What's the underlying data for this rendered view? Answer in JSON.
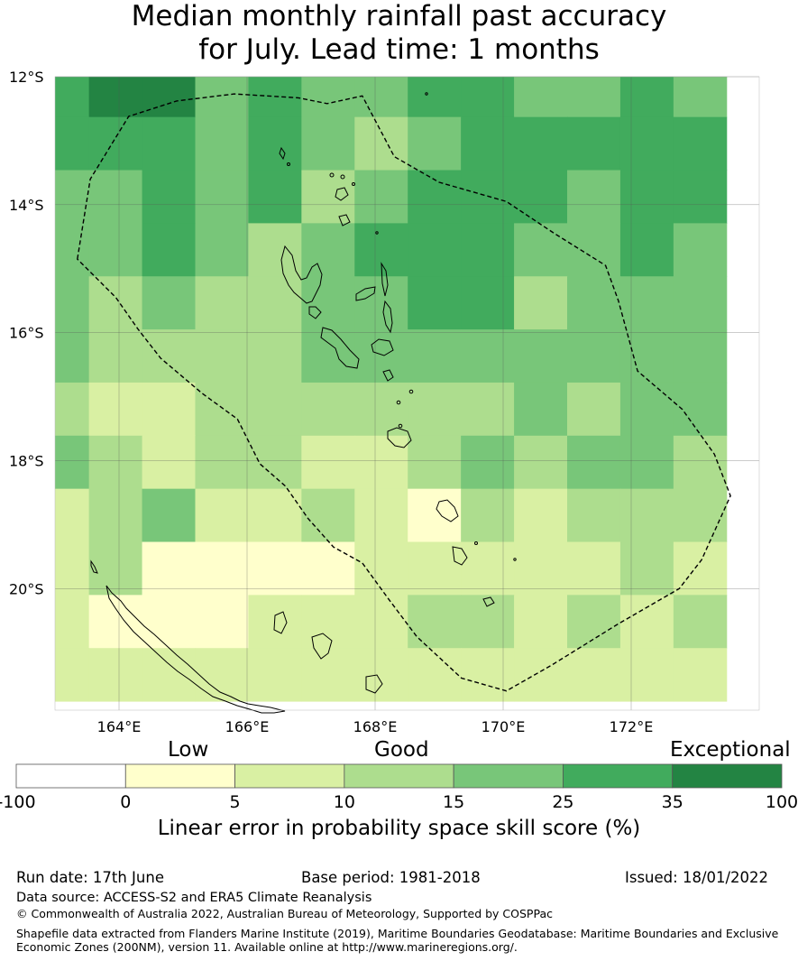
{
  "title": {
    "line1": "Median monthly rainfall past accuracy",
    "line2": "for July. Lead time: 1 months"
  },
  "map": {
    "lat_labels": [
      "12°S",
      "14°S",
      "16°S",
      "18°S",
      "20°S"
    ],
    "lon_labels": [
      "164°E",
      "166°E",
      "168°E",
      "170°E",
      "172°E"
    ],
    "lon_range": [
      163,
      174
    ],
    "lat_range": [
      -21.9,
      -12
    ],
    "cell_size_deg": 0.83,
    "grid_cols": 13,
    "grid_rows": 12,
    "skill_class_grid": [
      [
        5,
        6,
        6,
        4,
        5,
        4,
        4,
        5,
        5,
        4,
        4,
        5,
        4
      ],
      [
        5,
        5,
        5,
        4,
        5,
        4,
        3,
        4,
        5,
        5,
        5,
        5,
        5
      ],
      [
        4,
        4,
        5,
        4,
        5,
        3,
        4,
        5,
        5,
        5,
        4,
        5,
        5
      ],
      [
        4,
        4,
        5,
        4,
        3,
        4,
        5,
        5,
        5,
        4,
        4,
        5,
        4
      ],
      [
        4,
        3,
        4,
        3,
        3,
        4,
        4,
        5,
        5,
        3,
        4,
        4,
        4
      ],
      [
        4,
        3,
        3,
        3,
        3,
        4,
        4,
        4,
        4,
        4,
        4,
        4,
        4
      ],
      [
        3,
        2,
        2,
        3,
        3,
        3,
        3,
        3,
        3,
        4,
        3,
        4,
        4
      ],
      [
        4,
        3,
        2,
        3,
        3,
        2,
        2,
        3,
        4,
        3,
        4,
        4,
        3
      ],
      [
        2,
        3,
        4,
        2,
        2,
        3,
        2,
        1,
        3,
        2,
        3,
        3,
        3
      ],
      [
        2,
        3,
        1,
        1,
        1,
        1,
        2,
        2,
        2,
        2,
        2,
        3,
        2
      ],
      [
        2,
        1,
        1,
        1,
        2,
        2,
        2,
        3,
        3,
        2,
        3,
        2,
        3
      ],
      [
        2,
        2,
        2,
        2,
        2,
        2,
        2,
        2,
        2,
        2,
        2,
        2,
        2
      ]
    ],
    "eez_lon_lat": [
      [
        163.35,
        -14.85
      ],
      [
        163.55,
        -13.6
      ],
      [
        164.15,
        -12.62
      ],
      [
        164.9,
        -12.38
      ],
      [
        165.8,
        -12.27
      ],
      [
        166.8,
        -12.33
      ],
      [
        167.25,
        -12.42
      ],
      [
        167.8,
        -12.3
      ],
      [
        168.3,
        -13.25
      ],
      [
        169.0,
        -13.65
      ],
      [
        170.05,
        -13.95
      ],
      [
        170.8,
        -14.45
      ],
      [
        171.6,
        -14.95
      ],
      [
        171.8,
        -15.5
      ],
      [
        172.1,
        -16.6
      ],
      [
        172.8,
        -17.2
      ],
      [
        173.3,
        -17.9
      ],
      [
        173.55,
        -18.55
      ],
      [
        173.1,
        -19.55
      ],
      [
        172.75,
        -20.0
      ],
      [
        171.8,
        -20.55
      ],
      [
        170.75,
        -21.2
      ],
      [
        170.05,
        -21.6
      ],
      [
        169.35,
        -21.4
      ],
      [
        168.65,
        -20.75
      ],
      [
        168.2,
        -20.15
      ],
      [
        167.8,
        -19.6
      ],
      [
        167.35,
        -19.35
      ],
      [
        166.95,
        -18.9
      ],
      [
        166.6,
        -18.4
      ],
      [
        166.2,
        -18.05
      ],
      [
        165.85,
        -17.35
      ],
      [
        165.3,
        -16.95
      ],
      [
        164.65,
        -16.4
      ],
      [
        164.3,
        -15.95
      ],
      [
        163.95,
        -15.45
      ]
    ]
  },
  "colorbar": {
    "labels": [
      "-100",
      "0",
      "5",
      "10",
      "15",
      "25",
      "35",
      "100"
    ],
    "colors": [
      "#ffffff",
      "#ffffcc",
      "#d9f0a3",
      "#addd8e",
      "#78c679",
      "#41ab5d",
      "#238443"
    ],
    "category_low": "Low",
    "category_good": "Good",
    "category_exceptional": "Exceptional",
    "axis_label": "Linear error in probability space skill score (%)"
  },
  "footer": {
    "run_date": "Run date: 17th June",
    "base_period": "Base period: 1981-2018",
    "issued": "Issued: 18/01/2022",
    "data_source": "Data source: ACCESS-S2 and ERA5 Climate Reanalysis",
    "copyright": "© Commonwealth of Australia 2022, Australian Bureau of Meteorology, Supported by COSPPac",
    "shapefile_line1": "Shapefile data extracted from Flanders Marine Institute (2019), Maritime Boundaries Geodatabase: Maritime Boundaries and Exclusive",
    "shapefile_line2": "Economic Zones (200NM), version 11. Available online at http://www.marineregions.org/."
  }
}
